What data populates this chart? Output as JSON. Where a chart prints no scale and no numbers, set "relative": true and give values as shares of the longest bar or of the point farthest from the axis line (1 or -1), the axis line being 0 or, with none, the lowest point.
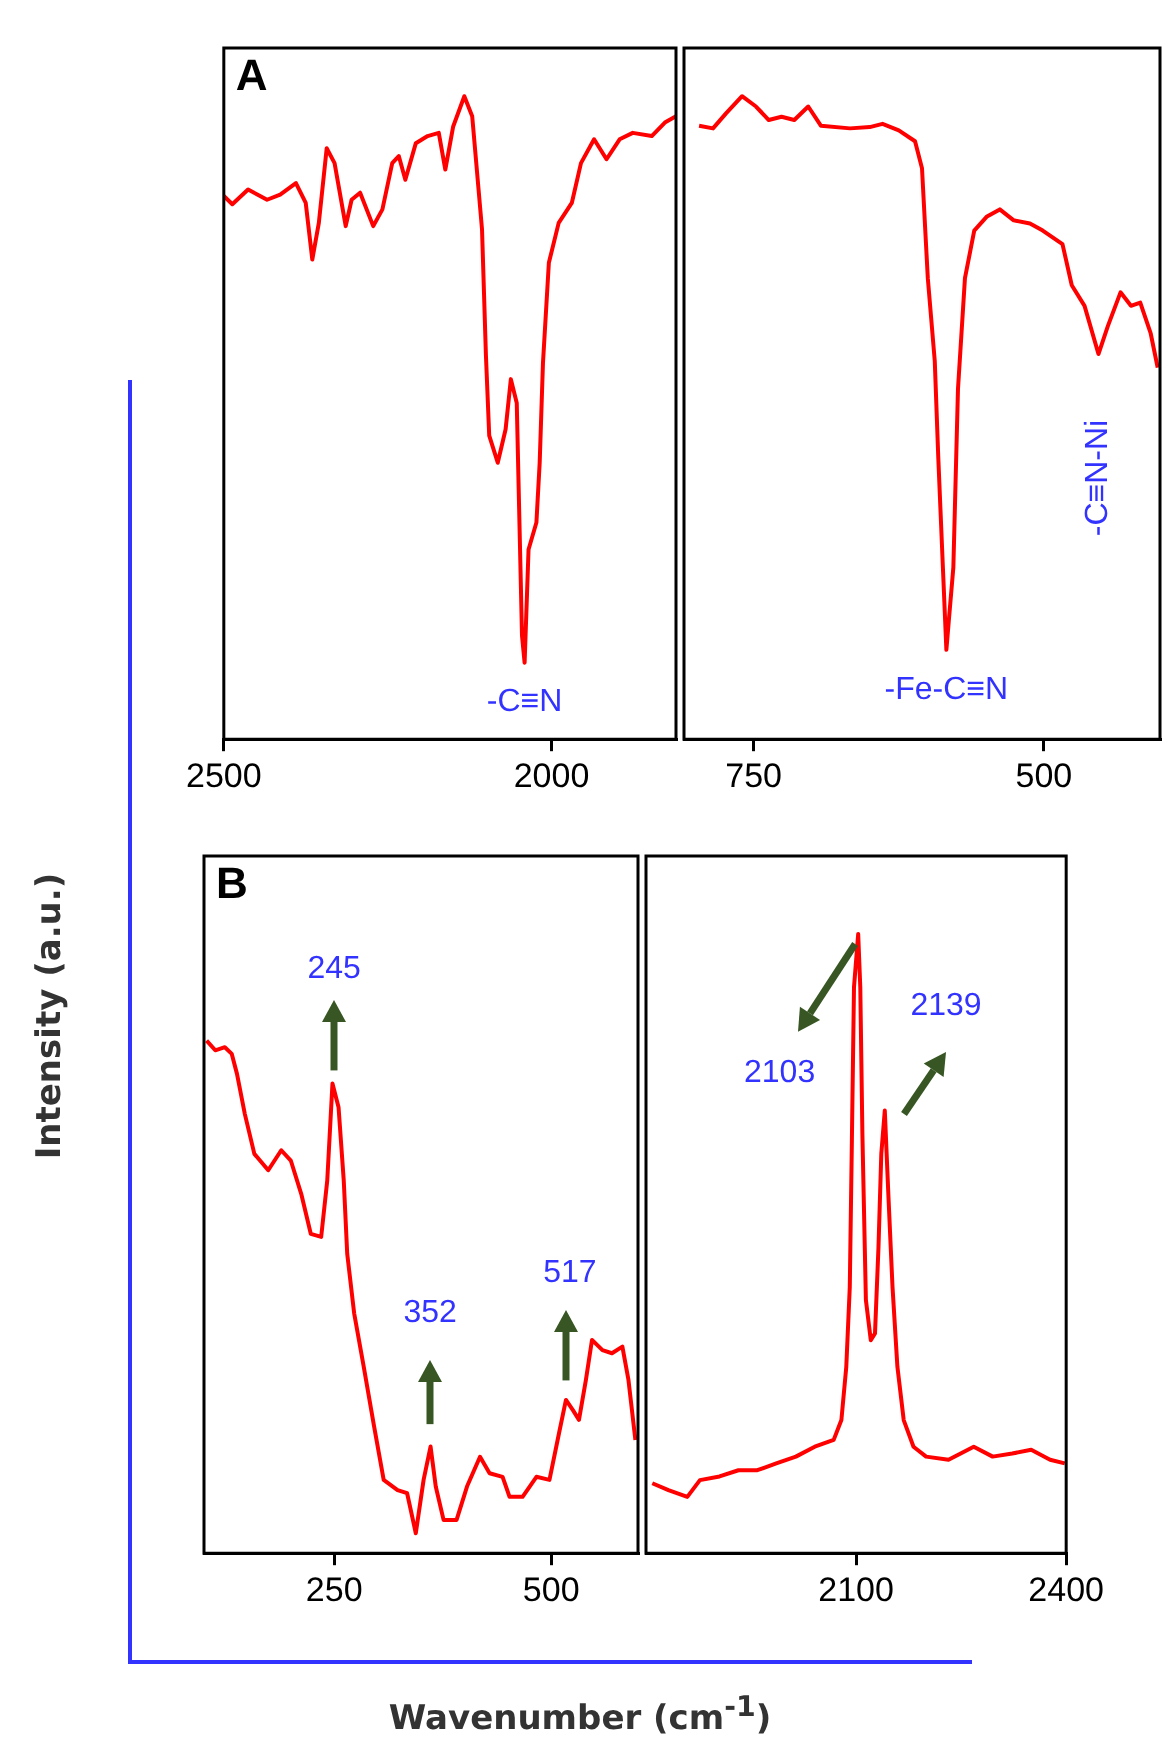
{
  "chart_data": [
    {
      "type": "line",
      "title": "A",
      "relative": true,
      "color": "#ff0000",
      "xlim": [
        2500,
        1810
      ],
      "xticks": [
        2500,
        2000
      ],
      "x": [
        2500,
        2487,
        2463,
        2434,
        2414,
        2390,
        2375,
        2365,
        2355,
        2343,
        2331,
        2314,
        2305,
        2292,
        2272,
        2258,
        2243,
        2233,
        2223,
        2207,
        2189,
        2172,
        2162,
        2150,
        2133,
        2121,
        2106,
        2100,
        2095,
        2082,
        2070,
        2062,
        2053,
        2045,
        2041,
        2035,
        2023,
        2018,
        2013,
        2004,
        1989,
        1969,
        1955,
        1935,
        1916,
        1896,
        1876,
        1847,
        1827,
        1810
      ],
      "values": [
        0.845,
        0.832,
        0.855,
        0.839,
        0.847,
        0.865,
        0.834,
        0.746,
        0.803,
        0.919,
        0.896,
        0.798,
        0.839,
        0.85,
        0.798,
        0.824,
        0.896,
        0.907,
        0.87,
        0.927,
        0.938,
        0.943,
        0.886,
        0.953,
        1.0,
        0.969,
        0.793,
        0.596,
        0.472,
        0.43,
        0.482,
        0.56,
        0.523,
        0.161,
        0.119,
        0.295,
        0.337,
        0.43,
        0.585,
        0.741,
        0.803,
        0.834,
        0.896,
        0.933,
        0.902,
        0.933,
        0.943,
        0.938,
        0.959,
        0.969
      ],
      "annotations": [
        {
          "text": "-C≡N",
          "x": 2041,
          "y": 0.119
        }
      ]
    },
    {
      "type": "line",
      "relative": true,
      "color": "#ff0000",
      "xlim": [
        810,
        400
      ],
      "xticks": [
        750,
        500
      ],
      "x": [
        797,
        785,
        774,
        760,
        748,
        737,
        726,
        715,
        703,
        692,
        667,
        650,
        639,
        625,
        611,
        605,
        600,
        594,
        591,
        587,
        584,
        582,
        578,
        574,
        568,
        560,
        549,
        538,
        526,
        512,
        501,
        484,
        476,
        465,
        453,
        445,
        434,
        425,
        417,
        408,
        402
      ],
      "values": [
        0.954,
        0.95,
        0.973,
        1.0,
        0.984,
        0.963,
        0.968,
        0.963,
        0.984,
        0.954,
        0.95,
        0.952,
        0.957,
        0.947,
        0.93,
        0.888,
        0.717,
        0.588,
        0.439,
        0.267,
        0.139,
        0.182,
        0.267,
        0.545,
        0.717,
        0.791,
        0.813,
        0.824,
        0.807,
        0.802,
        0.791,
        0.77,
        0.706,
        0.674,
        0.599,
        0.642,
        0.695,
        0.674,
        0.679,
        0.631,
        0.578
      ],
      "annotations": [
        {
          "text": "-Fe-C≡N",
          "x": 584,
          "y": 0.139
        },
        {
          "text": "-C≡N-Ni",
          "x": 453,
          "y": 0.599
        }
      ]
    },
    {
      "type": "line",
      "title": "B",
      "relative": true,
      "color": "#ff0000",
      "xlim": [
        100,
        600
      ],
      "xticks": [
        250,
        500
      ],
      "ylabel": "Intensity (a.u.)",
      "xlabel": "Wavenumber (cm$^{-1}$)",
      "x": [
        103,
        113,
        124,
        132,
        138,
        147,
        158,
        174,
        189,
        200,
        212,
        223,
        235,
        242,
        248,
        255,
        261,
        265,
        273,
        284,
        296,
        307,
        323,
        334,
        344,
        353,
        361,
        367,
        376,
        391,
        403,
        418,
        429,
        444,
        452,
        467,
        483,
        498,
        509,
        517,
        525,
        532,
        540,
        547,
        559,
        570,
        582,
        589,
        597
      ],
      "values": [
        1.0,
        0.981,
        0.987,
        0.974,
        0.935,
        0.857,
        0.779,
        0.747,
        0.786,
        0.766,
        0.701,
        0.623,
        0.617,
        0.727,
        0.916,
        0.87,
        0.727,
        0.584,
        0.468,
        0.364,
        0.247,
        0.143,
        0.123,
        0.117,
        0.039,
        0.143,
        0.208,
        0.13,
        0.065,
        0.065,
        0.13,
        0.188,
        0.156,
        0.149,
        0.11,
        0.11,
        0.149,
        0.143,
        0.234,
        0.299,
        0.279,
        0.26,
        0.338,
        0.416,
        0.396,
        0.39,
        0.403,
        0.338,
        0.221
      ],
      "annotations": [
        "245",
        "352",
        "517"
      ]
    },
    {
      "type": "line",
      "relative": true,
      "color": "#ff0000",
      "xlim": [
        1800,
        2400
      ],
      "xticks": [
        2100,
        2400
      ],
      "x": [
        1809,
        1832,
        1859,
        1877,
        1905,
        1932,
        1959,
        1986,
        2014,
        2041,
        2068,
        2079,
        2086,
        2091,
        2094,
        2097,
        2103,
        2106,
        2109,
        2114,
        2121,
        2127,
        2132,
        2136,
        2141,
        2146,
        2152,
        2159,
        2168,
        2182,
        2200,
        2232,
        2268,
        2295,
        2323,
        2350,
        2377,
        2398
      ],
      "values": [
        0.113,
        0.102,
        0.091,
        0.118,
        0.124,
        0.134,
        0.134,
        0.145,
        0.156,
        0.172,
        0.183,
        0.215,
        0.301,
        0.43,
        0.667,
        0.914,
        1.0,
        0.914,
        0.677,
        0.409,
        0.344,
        0.355,
        0.495,
        0.645,
        0.715,
        0.581,
        0.43,
        0.301,
        0.215,
        0.172,
        0.156,
        0.151,
        0.172,
        0.156,
        0.161,
        0.167,
        0.151,
        0.145
      ],
      "annotations": [
        "2103",
        "2139"
      ]
    }
  ]
}
